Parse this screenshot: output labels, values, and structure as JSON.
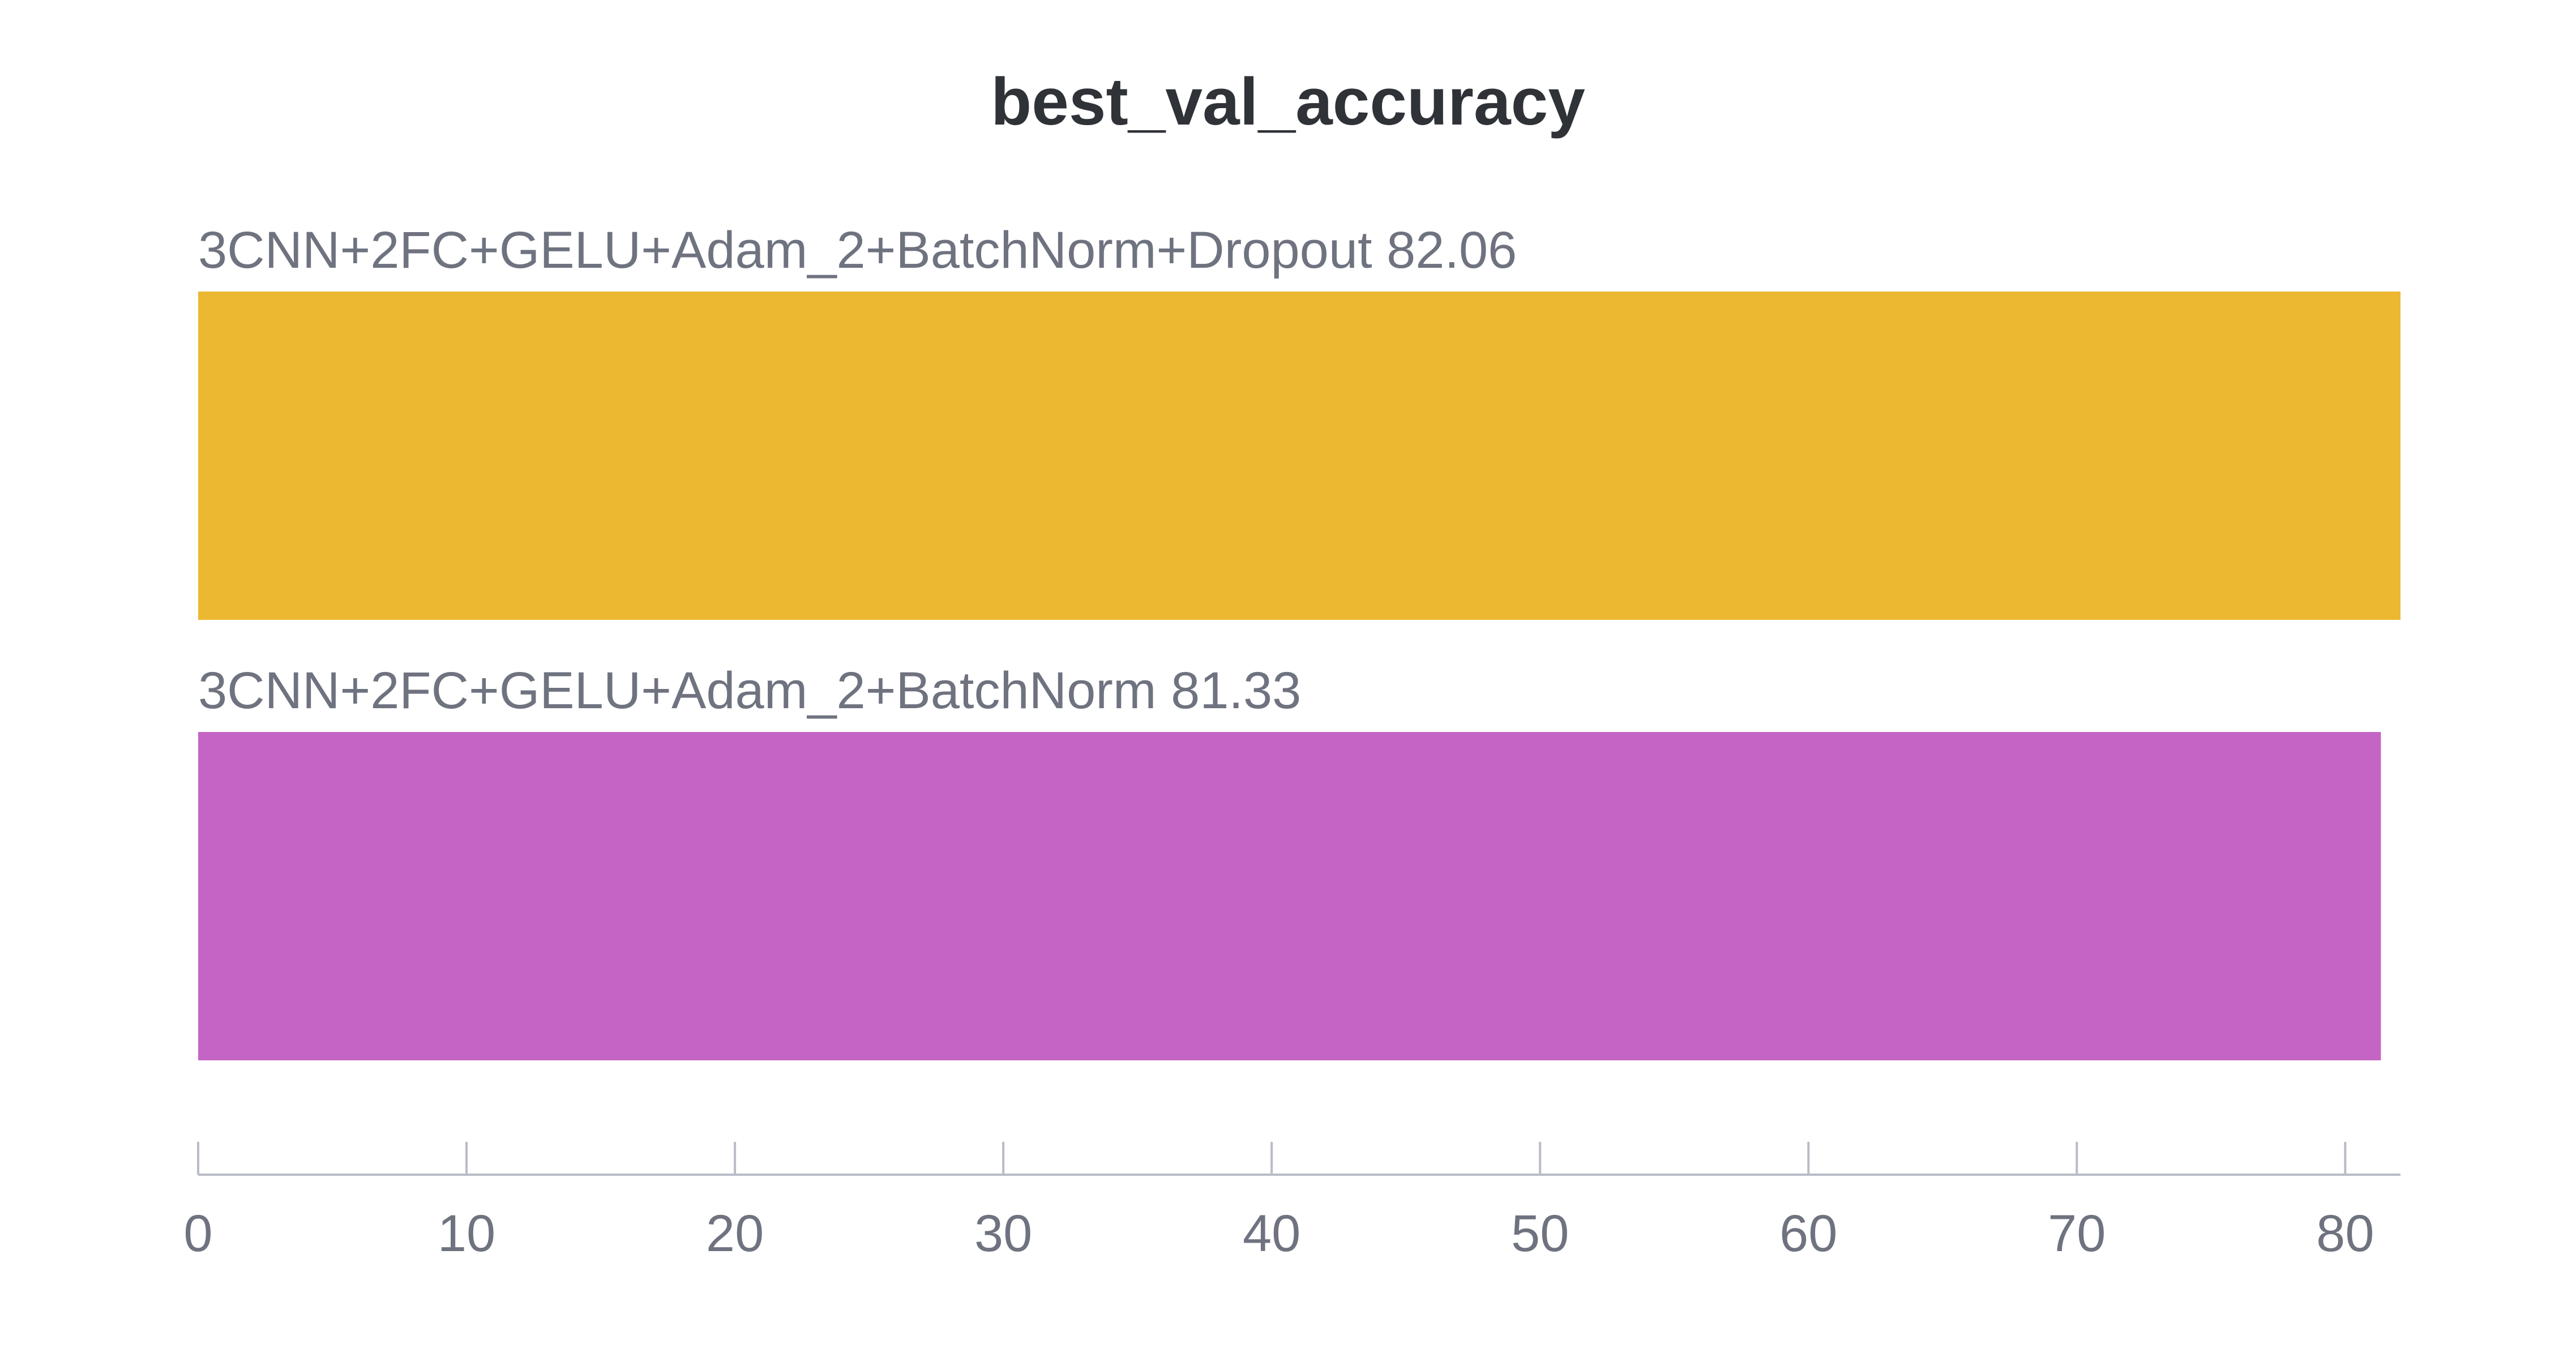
{
  "chart_data": {
    "type": "bar",
    "orientation": "horizontal",
    "title": "best_val_accuracy",
    "xlabel": "",
    "ylabel": "",
    "xlim": [
      0,
      82.06
    ],
    "ticks": [
      0,
      10,
      20,
      30,
      40,
      50,
      60,
      70,
      80
    ],
    "grid": false,
    "series": [
      {
        "label": "3CNN+2FC+GELU+Adam_2+BatchNorm+Dropout 82.06",
        "value": 82.06,
        "color": "#ECB731"
      },
      {
        "label": "3CNN+2FC+GELU+Adam_2+BatchNorm 81.33",
        "value": 81.33,
        "color": "#C465C5"
      }
    ]
  }
}
